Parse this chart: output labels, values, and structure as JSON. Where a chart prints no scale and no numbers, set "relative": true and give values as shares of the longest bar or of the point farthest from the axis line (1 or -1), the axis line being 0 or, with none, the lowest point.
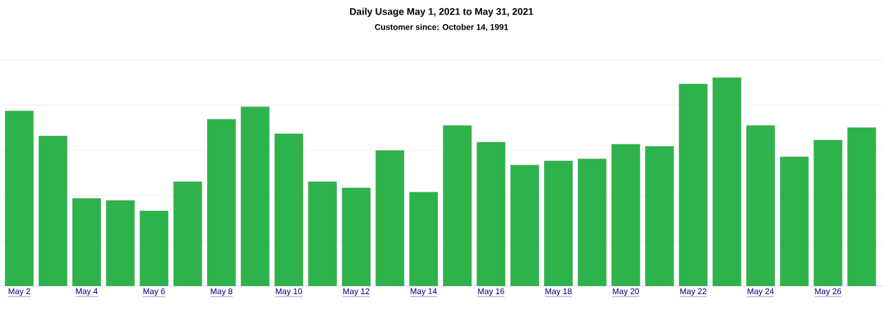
{
  "chart_data": {
    "type": "bar",
    "title": "Daily Usage May 1, 2021 to May 31, 2021",
    "subtitle": "Customer since: October 14, 1991",
    "categories": [
      "May 2",
      null,
      "May 4",
      null,
      "May 6",
      null,
      "May 8",
      null,
      "May 10",
      null,
      "May 12",
      null,
      "May 14",
      null,
      "May 16",
      null,
      "May 18",
      null,
      "May 20",
      null,
      "May 22",
      null,
      "May 24",
      null,
      "May 26",
      null
    ],
    "values": [
      0.84,
      0.72,
      0.42,
      0.41,
      0.36,
      0.5,
      0.8,
      0.86,
      0.73,
      0.5,
      0.47,
      0.65,
      0.45,
      0.77,
      0.69,
      0.58,
      0.6,
      0.61,
      0.68,
      0.67,
      0.97,
      1,
      0.77,
      0.62,
      0.7,
      0.76
    ],
    "color": "#2eb24b",
    "relative": true,
    "grid": "y"
  }
}
